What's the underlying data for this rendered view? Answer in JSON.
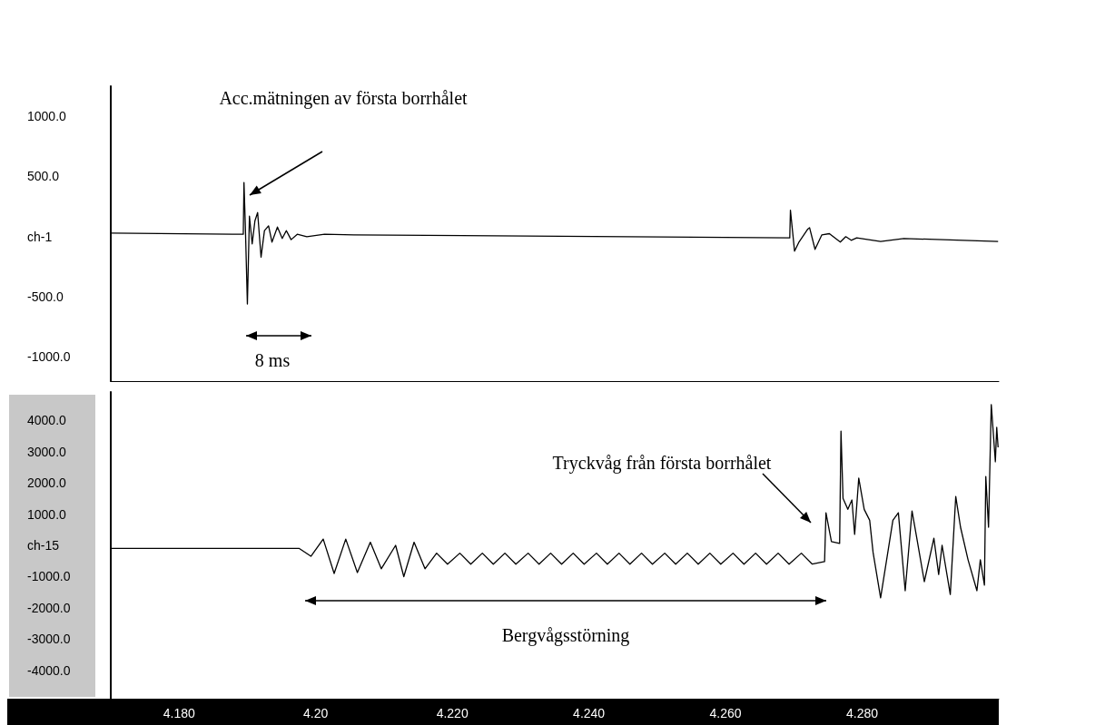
{
  "chart_data": [
    {
      "type": "line",
      "xlim": [
        4.17,
        4.3
      ],
      "tick_labels": "y",
      "ylim": [
        -1200,
        1250
      ],
      "yticks": [
        {
          "value": 1000,
          "label": "1000.0"
        },
        {
          "value": 500,
          "label": "500.0"
        },
        {
          "value": 0,
          "label": "ch-1"
        },
        {
          "value": -500,
          "label": "-500.0"
        },
        {
          "value": -1000,
          "label": "-1000.0"
        }
      ],
      "annotations": [
        "Acc.mätningen av första borrhålet",
        "8 ms"
      ],
      "series": [
        {
          "color": "#000000",
          "x": [
            4.17,
            4.1891,
            4.1894,
            4.1895,
            4.1897,
            4.19,
            4.1903,
            4.1907,
            4.1911,
            4.1915,
            4.192,
            4.1925,
            4.1931,
            4.1936,
            4.1944,
            4.1951,
            4.1957,
            4.1964,
            4.1973,
            4.1987,
            4.2013,
            4.2056,
            4.2694,
            4.2695,
            4.2701,
            4.2707,
            4.272,
            4.2723,
            4.2731,
            4.2741,
            4.2752,
            4.2768,
            4.2776,
            4.2784,
            4.2792,
            4.2827,
            4.2861,
            4.2999
          ],
          "values": [
            30,
            20,
            20,
            450,
            90,
            -560,
            170,
            -60,
            130,
            200,
            -170,
            50,
            90,
            -45,
            80,
            -15,
            50,
            -25,
            20,
            0,
            20,
            15,
            -10,
            220,
            -120,
            -50,
            60,
            75,
            -105,
            15,
            25,
            -45,
            0,
            -30,
            -10,
            -40,
            -15,
            -40
          ]
        }
      ]
    },
    {
      "type": "line",
      "xlim": [
        4.17,
        4.3
      ],
      "xticks": [
        {
          "value": 4.18,
          "label": "4.180"
        },
        {
          "value": 4.2,
          "label": "4.20"
        },
        {
          "value": 4.22,
          "label": "4.220"
        },
        {
          "value": 4.24,
          "label": "4.240"
        },
        {
          "value": 4.26,
          "label": "4.260"
        },
        {
          "value": 4.28,
          "label": "4.280"
        }
      ],
      "ylim": [
        -4900,
        4900
      ],
      "yticks": [
        {
          "value": 4000,
          "label": "4000.0"
        },
        {
          "value": 3000,
          "label": "3000.0"
        },
        {
          "value": 2000,
          "label": "2000.0"
        },
        {
          "value": 1000,
          "label": "1000.0"
        },
        {
          "value": 0,
          "label": "ch-15"
        },
        {
          "value": -1000,
          "label": "-1000.0"
        },
        {
          "value": -2000,
          "label": "-2000.0"
        },
        {
          "value": -3000,
          "label": "-3000.0"
        },
        {
          "value": -4000,
          "label": "-4000.0"
        }
      ],
      "annotations": [
        "Tryckvåg från första borrhålet",
        "Bergvågsstörning"
      ],
      "series": [
        {
          "color": "#000000",
          "x": [
            4.17,
            4.1976,
            4.1993,
            4.2011,
            4.2027,
            4.2044,
            4.2061,
            4.208,
            4.2096,
            4.2117,
            4.2129,
            4.2144,
            4.216,
            4.2177,
            4.2193,
            4.2211,
            4.2227,
            4.2244,
            4.226,
            4.2277,
            4.2293,
            4.2311,
            4.2327,
            4.2344,
            4.236,
            4.2377,
            4.2393,
            4.2411,
            4.2427,
            4.2444,
            4.246,
            4.2477,
            4.2493,
            4.2511,
            4.2527,
            4.2544,
            4.256,
            4.2577,
            4.2593,
            4.2611,
            4.2627,
            4.2644,
            4.266,
            4.2677,
            4.2693,
            4.2711,
            4.2727,
            4.2745,
            4.2747,
            4.2755,
            4.2767,
            4.2769,
            4.2772,
            4.2779,
            4.2785,
            4.2789,
            4.2795,
            4.2803,
            4.2811,
            4.2816,
            4.2827,
            4.2845,
            4.2853,
            4.2863,
            4.2873,
            4.288,
            4.2891,
            4.2905,
            4.2912,
            4.2917,
            4.2929,
            4.2937,
            4.2944,
            4.2955,
            4.2968,
            4.2973,
            4.2979,
            4.2981,
            4.2985,
            4.2989,
            4.2995,
            4.2997,
            4.2999
          ],
          "values": [
            -100,
            -100,
            -350,
            200,
            -900,
            200,
            -870,
            100,
            -750,
            0,
            -1000,
            100,
            -750,
            -250,
            -600,
            -250,
            -600,
            -250,
            -600,
            -250,
            -600,
            -250,
            -600,
            -250,
            -600,
            -250,
            -600,
            -250,
            -600,
            -250,
            -600,
            -250,
            -600,
            -250,
            -600,
            -250,
            -600,
            -250,
            -600,
            -250,
            -600,
            -250,
            -600,
            -250,
            -600,
            -250,
            -600,
            -520,
            1040,
            120,
            60,
            3650,
            1500,
            1150,
            1450,
            350,
            2150,
            1150,
            800,
            -230,
            -1680,
            800,
            1040,
            -1450,
            1100,
            230,
            -1160,
            230,
            -930,
            0,
            -1570,
            1560,
            580,
            -460,
            -1450,
            -460,
            -1270,
            2200,
            580,
            4500,
            2670,
            3770,
            3130
          ]
        }
      ]
    }
  ]
}
